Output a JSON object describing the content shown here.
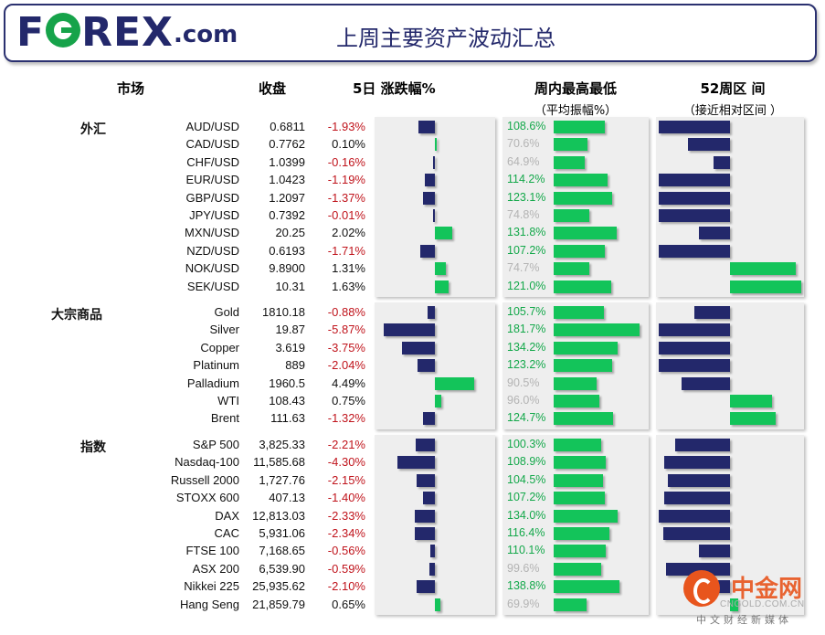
{
  "header": {
    "logo_text": "FOREX",
    "logo_suffix": ".com",
    "title": "上周主要资产波动汇总"
  },
  "columns": {
    "market": "市场",
    "close": "收盘",
    "change": "5日 涨跌幅%",
    "weekly_range": "周内最高最低",
    "weekly_range_sub": "（平均振幅%）",
    "range_52w": "52周区 间",
    "range_52w_sub": "（接近相对区间 ）"
  },
  "colors": {
    "navy": "#23286b",
    "green": "#13c45a",
    "negative_text": "#c0141c",
    "range_high_text": "#13a84a",
    "range_low_text": "#b3b3b3"
  },
  "chart_data": {
    "type": "table",
    "groups": [
      {
        "label": "外汇",
        "rows": [
          {
            "name": "AUD/USD",
            "close": "0.6811",
            "change": "-1.93%",
            "change_value": -1.93,
            "range": "108.6%",
            "range_value": 108.6,
            "pos52": -0.85
          },
          {
            "name": "CAD/USD",
            "close": "0.7762",
            "change": "0.10%",
            "change_value": 0.1,
            "range": "70.6%",
            "range_value": 70.6,
            "pos52": -0.5
          },
          {
            "name": "CHF/USD",
            "close": "1.0399",
            "change": "-0.16%",
            "change_value": -0.16,
            "range": "64.9%",
            "range_value": 64.9,
            "pos52": -0.2
          },
          {
            "name": "EUR/USD",
            "close": "1.0423",
            "change": "-1.19%",
            "change_value": -1.19,
            "range": "114.2%",
            "range_value": 114.2,
            "pos52": -0.85
          },
          {
            "name": "GBP/USD",
            "close": "1.2097",
            "change": "-1.37%",
            "change_value": -1.37,
            "range": "123.1%",
            "range_value": 123.1,
            "pos52": -0.85
          },
          {
            "name": "JPY/USD",
            "close": "0.7392",
            "change": "-0.01%",
            "change_value": -0.01,
            "range": "74.8%",
            "range_value": 74.8,
            "pos52": -0.85
          },
          {
            "name": "MXN/USD",
            "close": "20.25",
            "change": "2.02%",
            "change_value": 2.02,
            "range": "131.8%",
            "range_value": 131.8,
            "pos52": -0.37
          },
          {
            "name": "NZD/USD",
            "close": "0.6193",
            "change": "-1.71%",
            "change_value": -1.71,
            "range": "107.2%",
            "range_value": 107.2,
            "pos52": -0.85
          },
          {
            "name": "NOK/USD",
            "close": "9.8900",
            "change": "1.31%",
            "change_value": 1.31,
            "range": "74.7%",
            "range_value": 74.7,
            "pos52": 0.78
          },
          {
            "name": "SEK/USD",
            "close": "10.31",
            "change": "1.63%",
            "change_value": 1.63,
            "range": "121.0%",
            "range_value": 121.0,
            "pos52": 0.85
          }
        ]
      },
      {
        "label": "大宗商品",
        "rows": [
          {
            "name": "Gold",
            "close": "1810.18",
            "change": "-0.88%",
            "change_value": -0.88,
            "range": "105.7%",
            "range_value": 105.7,
            "pos52": -0.43
          },
          {
            "name": "Silver",
            "close": "19.87",
            "change": "-5.87%",
            "change_value": -5.87,
            "range": "181.7%",
            "range_value": 181.7,
            "pos52": -0.85
          },
          {
            "name": "Copper",
            "close": "3.619",
            "change": "-3.75%",
            "change_value": -3.75,
            "range": "134.2%",
            "range_value": 134.2,
            "pos52": -0.85
          },
          {
            "name": "Platinum",
            "close": "889",
            "change": "-2.04%",
            "change_value": -2.04,
            "range": "123.2%",
            "range_value": 123.2,
            "pos52": -0.85
          },
          {
            "name": "Palladium",
            "close": "1960.5",
            "change": "4.49%",
            "change_value": 4.49,
            "range": "90.5%",
            "range_value": 90.5,
            "pos52": -0.58
          },
          {
            "name": "WTI",
            "close": "108.43",
            "change": "0.75%",
            "change_value": 0.75,
            "range": "96.0%",
            "range_value": 96.0,
            "pos52": 0.5
          },
          {
            "name": "Brent",
            "close": "111.63",
            "change": "-1.32%",
            "change_value": -1.32,
            "range": "124.7%",
            "range_value": 124.7,
            "pos52": 0.55
          }
        ]
      },
      {
        "label": "指数",
        "rows": [
          {
            "name": "S&P 500",
            "close": "3,825.33",
            "change": "-2.21%",
            "change_value": -2.21,
            "range": "100.3%",
            "range_value": 100.3,
            "pos52": -0.65
          },
          {
            "name": "Nasdaq-100",
            "close": "11,585.68",
            "change": "-4.30%",
            "change_value": -4.3,
            "range": "108.9%",
            "range_value": 108.9,
            "pos52": -0.78
          },
          {
            "name": "Russell 2000",
            "close": "1,727.76",
            "change": "-2.15%",
            "change_value": -2.15,
            "range": "104.5%",
            "range_value": 104.5,
            "pos52": -0.74
          },
          {
            "name": "STOXX 600",
            "close": "407.13",
            "change": "-1.40%",
            "change_value": -1.4,
            "range": "107.2%",
            "range_value": 107.2,
            "pos52": -0.78
          },
          {
            "name": "DAX",
            "close": "12,813.03",
            "change": "-2.33%",
            "change_value": -2.33,
            "range": "134.0%",
            "range_value": 134.0,
            "pos52": -0.85
          },
          {
            "name": "CAC",
            "close": "5,931.06",
            "change": "-2.34%",
            "change_value": -2.34,
            "range": "116.4%",
            "range_value": 116.4,
            "pos52": -0.8
          },
          {
            "name": "FTSE 100",
            "close": "7,168.65",
            "change": "-0.56%",
            "change_value": -0.56,
            "range": "110.1%",
            "range_value": 110.1,
            "pos52": -0.37
          },
          {
            "name": "ASX 200",
            "close": "6,539.90",
            "change": "-0.59%",
            "change_value": -0.59,
            "range": "99.6%",
            "range_value": 99.6,
            "pos52": -0.76
          },
          {
            "name": "Nikkei 225",
            "close": "25,935.62",
            "change": "-2.10%",
            "change_value": -2.1,
            "range": "138.8%",
            "range_value": 138.8,
            "pos52": -0.4
          },
          {
            "name": "Hang Seng",
            "close": "21,859.79",
            "change": "0.65%",
            "change_value": 0.65,
            "range": "69.9%",
            "range_value": 69.9,
            "pos52": 0.1
          }
        ]
      }
    ]
  },
  "watermark": {
    "brand": "中金网",
    "url": "CNGOLD.COM.CN",
    "tagline": "中文财经新媒体"
  }
}
